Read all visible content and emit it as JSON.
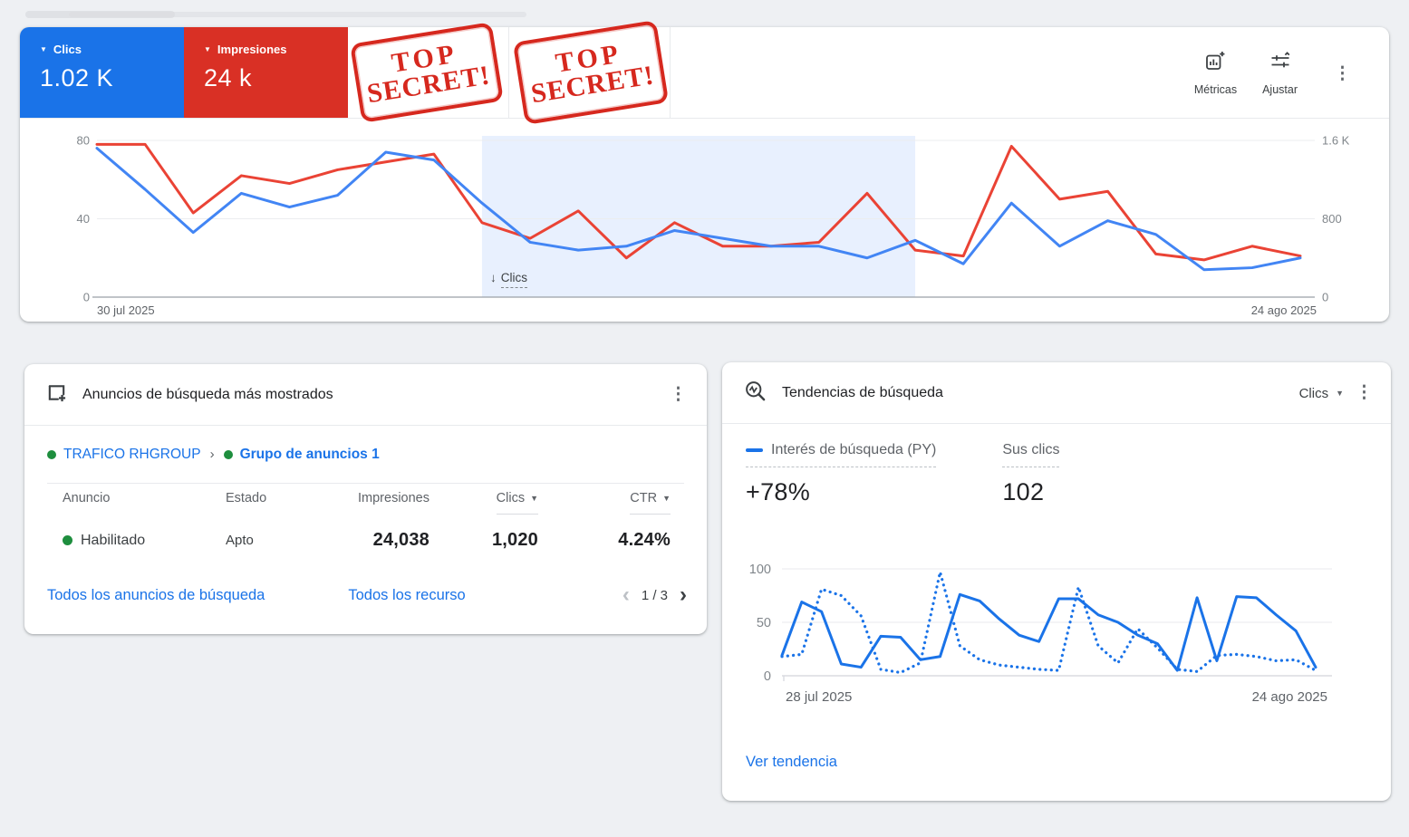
{
  "icons": {
    "kebab": "⋮",
    "caret_down": "▼",
    "chevron_left": "‹",
    "chevron_right": "›",
    "arrow_down": "↓"
  },
  "colors": {
    "page_bg": "#eef0f3",
    "tile_blue": "#1a73e8",
    "tile_red": "#d93025",
    "line_blue": "#4285f4",
    "line_red": "#ea4335",
    "trend_blue": "#1a73e8",
    "link_blue": "#1a73e8",
    "status_green": "#1e8e3e",
    "highlight_region": "#e8f0fe",
    "stamp_red": "#d6281e"
  },
  "top_card": {
    "tiles": [
      {
        "label": "Clics",
        "value": "1.02 K"
      },
      {
        "label": "Impresiones",
        "value": "24 k"
      }
    ],
    "stamps": [
      {
        "line1": "TOP",
        "line2": "SECRET!"
      },
      {
        "line1": "TOP",
        "line2": "SECRET!"
      }
    ],
    "toolbar": {
      "metrics": "Métricas",
      "adjust": "Ajustar"
    },
    "annotation": {
      "arrow": "↓",
      "label": "Clics"
    }
  },
  "chart_data": [
    {
      "type": "line",
      "title": "Rendimiento diario: Clics e Impresiones",
      "x_start_label": "30 jul 2025",
      "x_end_label": "24 ago 2025",
      "left_axis": {
        "min": 0,
        "max": 80,
        "ticks": [
          "0",
          "40",
          "80"
        ]
      },
      "right_axis": {
        "min": 0,
        "max": 1600,
        "ticks": [
          "0",
          "800",
          "1.6 K"
        ]
      },
      "highlight_region": {
        "start_index": 8,
        "end_index": 17,
        "label": "Clics"
      },
      "grid": true,
      "legend_position": "none",
      "series": [
        {
          "name": "Clics",
          "axis": "left",
          "color": "#4285f4",
          "values": [
            76,
            55,
            33,
            53,
            46,
            52,
            74,
            70,
            48,
            28,
            24,
            26,
            34,
            30,
            26,
            26,
            20,
            29,
            17,
            48,
            26,
            39,
            32,
            14,
            15,
            20
          ]
        },
        {
          "name": "Impresiones",
          "axis": "right",
          "color": "#ea4335",
          "values": [
            1560,
            1560,
            860,
            1240,
            1160,
            1300,
            1380,
            1460,
            760,
            600,
            880,
            400,
            760,
            520,
            520,
            560,
            1060,
            480,
            420,
            1540,
            1000,
            1080,
            440,
            380,
            520,
            420
          ]
        }
      ]
    },
    {
      "type": "line",
      "title": "Tendencias de búsqueda",
      "x_start_label": "28 jul 2025",
      "x_end_label": "24 ago 2025",
      "y_axis": {
        "min": 0,
        "max": 100,
        "ticks": [
          "0",
          "50",
          "100"
        ]
      },
      "grid": true,
      "legend_position": "top",
      "series": [
        {
          "name": "Interés de búsqueda (PY)",
          "style": "solid",
          "color": "#1a73e8",
          "values": [
            19,
            69,
            60,
            11,
            8,
            37,
            36,
            15,
            18,
            76,
            70,
            53,
            38,
            32,
            72,
            72,
            57,
            50,
            38,
            30,
            5,
            73,
            14,
            74,
            73,
            57,
            42,
            8
          ]
        },
        {
          "name": "Sus clics",
          "style": "dotted",
          "color": "#1a73e8",
          "values": [
            18,
            20,
            81,
            75,
            56,
            6,
            3,
            12,
            97,
            28,
            15,
            10,
            8,
            6,
            5,
            83,
            28,
            12,
            44,
            26,
            6,
            4,
            19,
            20,
            18,
            14,
            15,
            5
          ]
        }
      ]
    }
  ],
  "ads_card": {
    "title": "Anuncios de búsqueda más mostrados",
    "breadcrumb": {
      "campaign": "TRAFICO RHGROUP",
      "separator": "›",
      "ad_group": "Grupo de anuncios 1"
    },
    "table": {
      "headers": [
        {
          "label": "Anuncio"
        },
        {
          "label": "Estado"
        },
        {
          "label": "Impresiones"
        },
        {
          "label": "Clics"
        },
        {
          "label": "CTR"
        }
      ],
      "rows": [
        {
          "anuncio": "Habilitado",
          "estado": "Apto",
          "impresiones": "24,038",
          "clics": "1,020",
          "ctr": "4.24%"
        }
      ]
    },
    "links": {
      "all_search_ads": "Todos los anuncios de búsqueda",
      "all_assets": "Todos los recurso"
    },
    "pagination": {
      "current": "1 / 3"
    }
  },
  "trends_card": {
    "title": "Tendencias de búsqueda",
    "metric_selector": "Clics",
    "legend": [
      {
        "label": "Interés de búsqueda (PY)",
        "value": "+78%"
      },
      {
        "label": "Sus clics",
        "value": "102"
      }
    ],
    "link": "Ver tendencia"
  }
}
